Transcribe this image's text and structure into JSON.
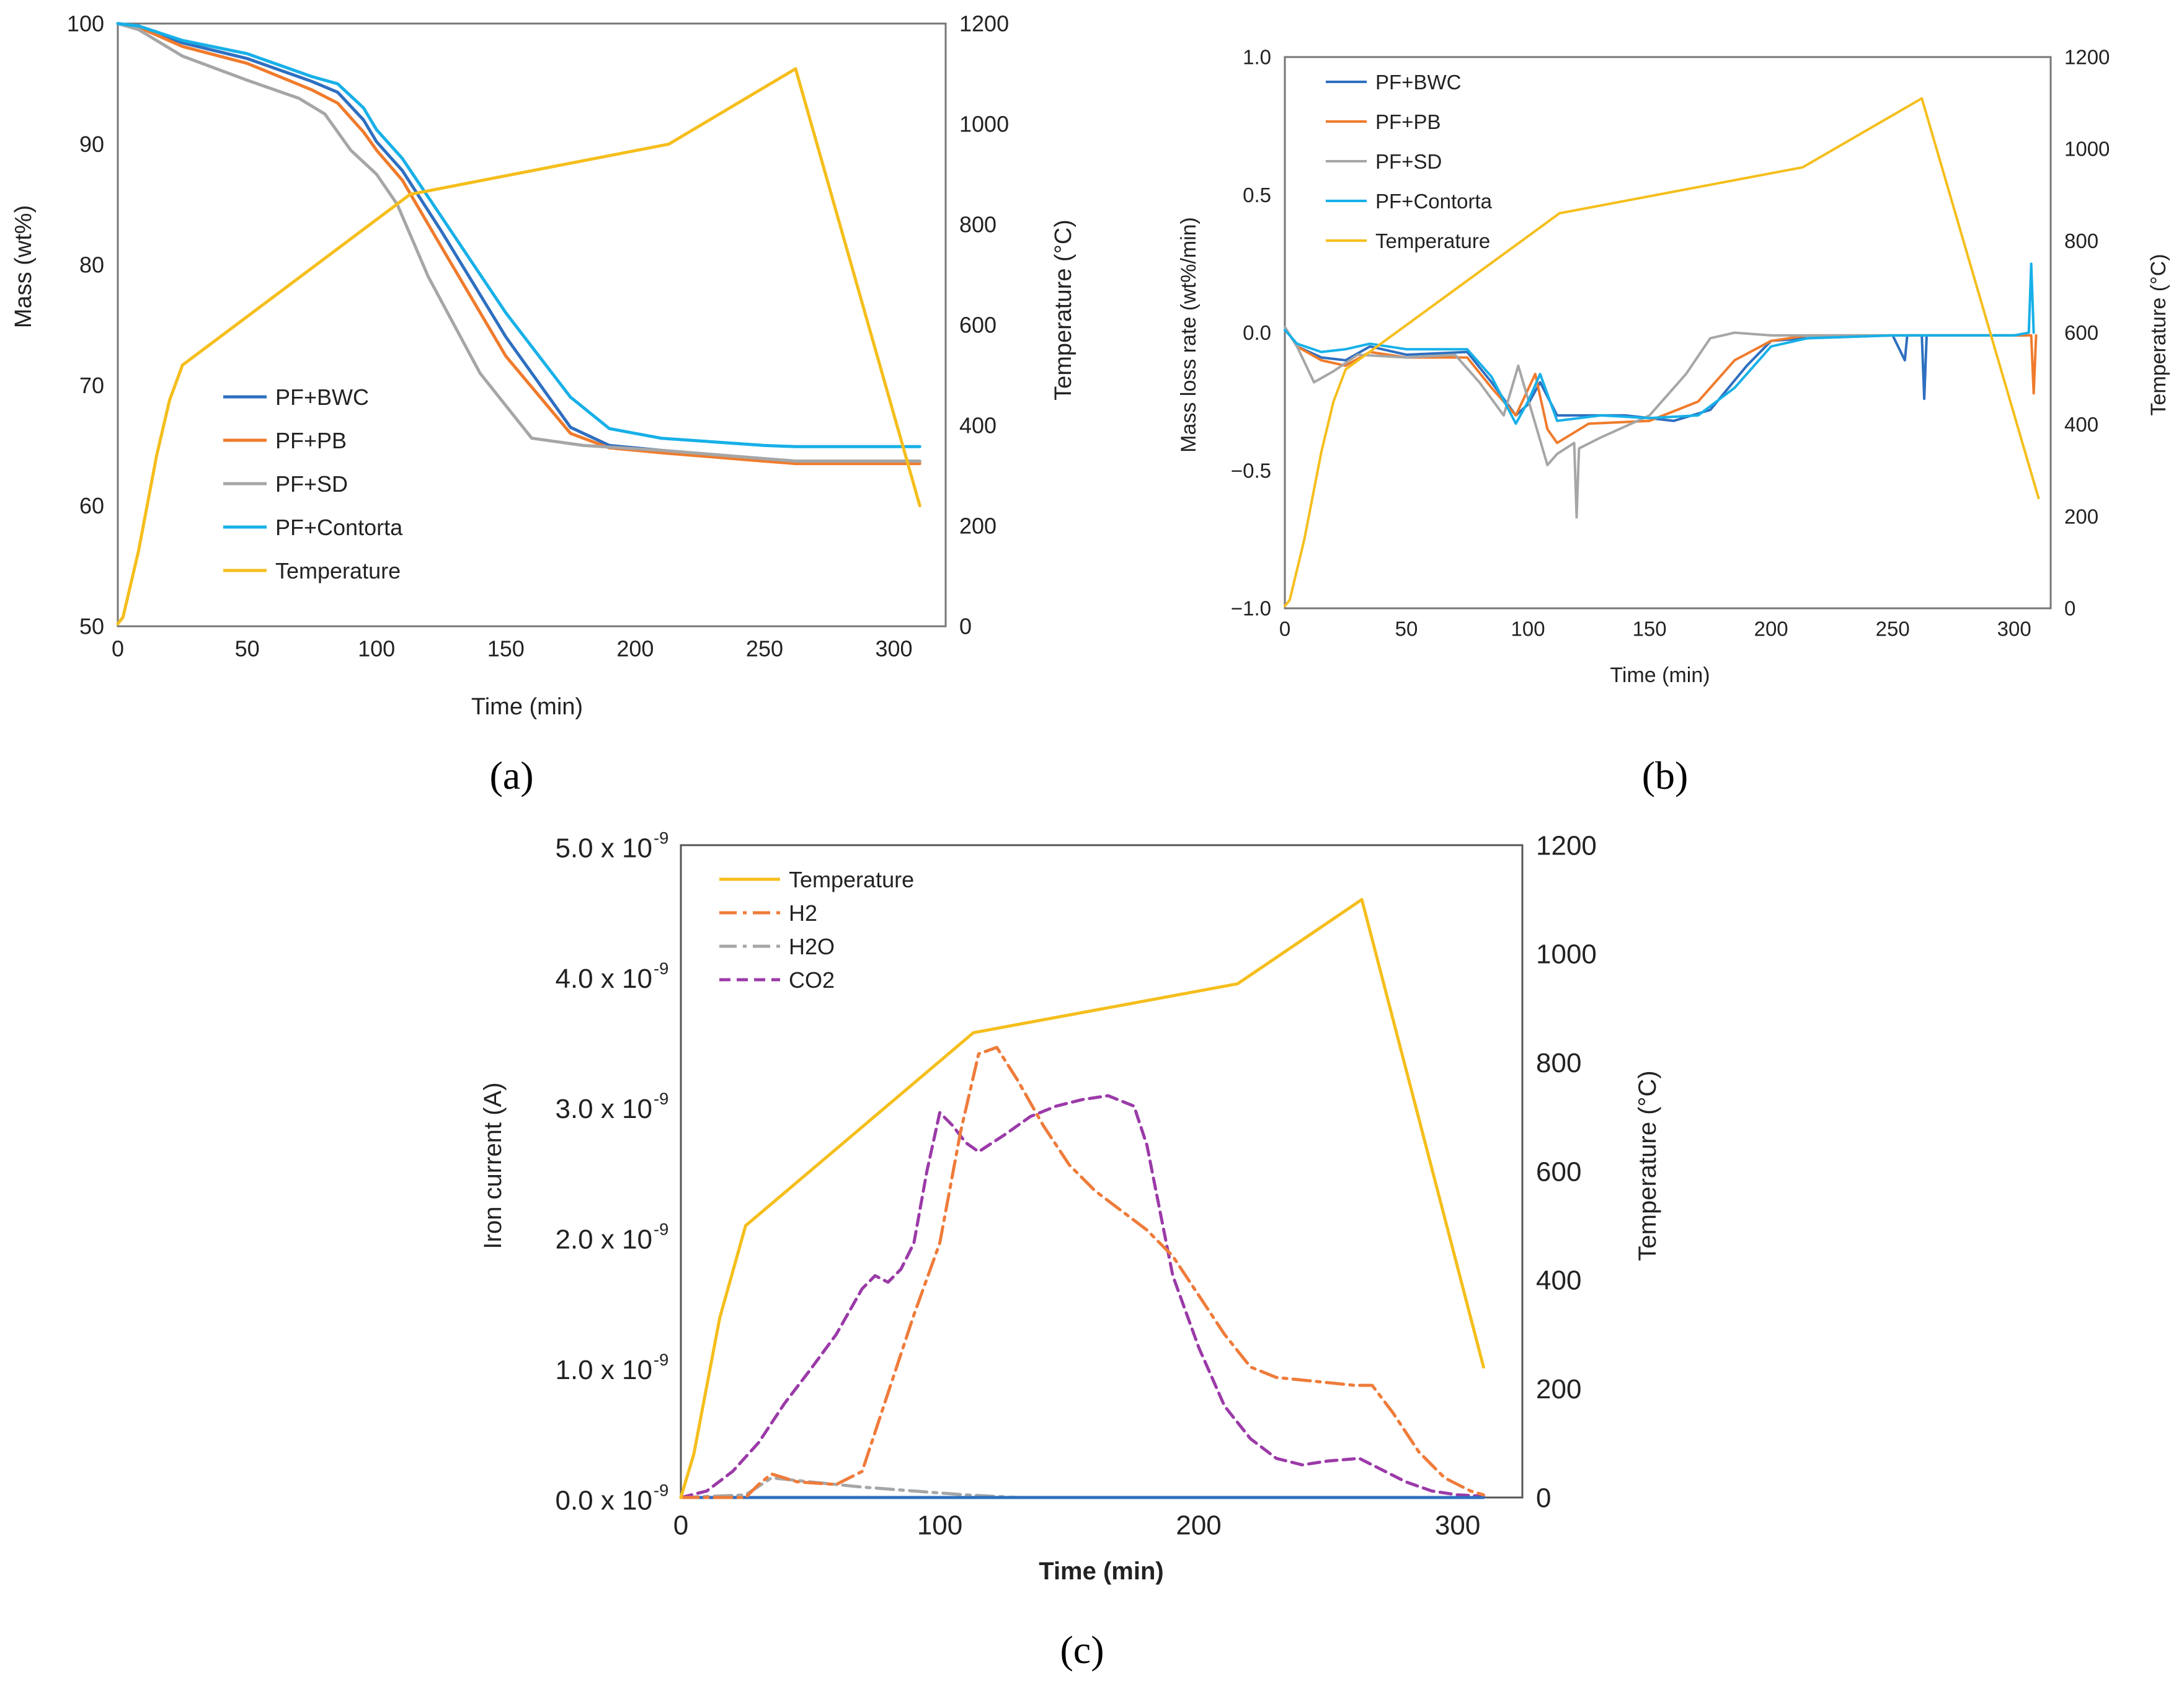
{
  "chart_data": [
    {
      "id": "a",
      "type": "line",
      "panel_label": "(a)",
      "xlabel": "Time (min)",
      "ylabel": "Mass  (wt%)",
      "y2label": "Temperature (°C)",
      "xlim": [
        0,
        320
      ],
      "ylim": [
        50,
        100
      ],
      "y2lim": [
        0,
        1200
      ],
      "xticks": [
        0,
        50,
        100,
        150,
        200,
        250,
        300
      ],
      "yticks": [
        50,
        60,
        70,
        80,
        90,
        100
      ],
      "y2ticks": [
        0,
        200,
        400,
        600,
        800,
        1000,
        1200
      ],
      "legend_position": "lower-left",
      "legend": [
        "PF+BWC",
        "PF+PB",
        "PF+SD",
        "PF+Contorta",
        "Temperature"
      ],
      "series": [
        {
          "name": "PF+BWC",
          "color": "#2e6fc0",
          "axis": "left",
          "x": [
            0,
            8,
            25,
            50,
            75,
            85,
            95,
            100,
            110,
            125,
            150,
            175,
            190,
            210,
            250,
            262,
            310
          ],
          "y": [
            100,
            99.8,
            98.4,
            97.1,
            95.2,
            94.3,
            92.0,
            90.2,
            87.8,
            82.8,
            74.0,
            66.5,
            65.0,
            64.6,
            63.9,
            63.7,
            63.7
          ]
        },
        {
          "name": "PF+PB",
          "color": "#f07b2c",
          "axis": "left",
          "x": [
            0,
            8,
            25,
            50,
            75,
            85,
            95,
            100,
            110,
            125,
            150,
            175,
            190,
            210,
            250,
            262,
            310
          ],
          "y": [
            100,
            99.7,
            98.1,
            96.7,
            94.5,
            93.4,
            91.0,
            89.5,
            87.0,
            81.5,
            72.4,
            66.0,
            64.8,
            64.4,
            63.7,
            63.5,
            63.5
          ]
        },
        {
          "name": "PF+SD",
          "color": "#a6a6a6",
          "axis": "left",
          "x": [
            0,
            8,
            25,
            50,
            70,
            80,
            90,
            100,
            108,
            120,
            140,
            160,
            180,
            210,
            250,
            262,
            310
          ],
          "y": [
            100,
            99.5,
            97.3,
            95.3,
            93.8,
            92.5,
            89.5,
            87.5,
            85.0,
            79.0,
            71.0,
            65.6,
            65.0,
            64.6,
            63.9,
            63.7,
            63.7
          ]
        },
        {
          "name": "PF+Contorta",
          "color": "#17b0e8",
          "axis": "left",
          "x": [
            0,
            8,
            25,
            50,
            75,
            85,
            95,
            100,
            110,
            125,
            150,
            175,
            190,
            210,
            250,
            262,
            310
          ],
          "y": [
            100,
            99.8,
            98.6,
            97.5,
            95.6,
            95.0,
            93.0,
            91.2,
            88.8,
            84.0,
            76.0,
            69.0,
            66.4,
            65.6,
            65.0,
            64.9,
            64.9
          ]
        },
        {
          "name": "Temperature",
          "color": "#f5be1c",
          "axis": "right",
          "x": [
            0,
            2,
            8,
            15,
            20,
            25,
            113,
            213,
            262,
            310
          ],
          "y": [
            5,
            18,
            150,
            340,
            450,
            520,
            860,
            960,
            1110,
            240
          ]
        }
      ]
    },
    {
      "id": "b",
      "type": "line",
      "panel_label": "(b)",
      "xlabel": "Time (min)",
      "ylabel": "Mass loss rate  (wt%/min)",
      "y2label": "Temperature (°C)",
      "xlim": [
        0,
        315
      ],
      "ylim": [
        -1.0,
        1.0
      ],
      "y2lim": [
        0,
        1200
      ],
      "xticks": [
        0,
        50,
        100,
        150,
        200,
        250,
        300
      ],
      "yticks": [
        -1.0,
        -0.5,
        0.0,
        0.5,
        1.0
      ],
      "ytick_labels": [
        "−1.0",
        "−0.5",
        "0.0",
        "0.5",
        "1.0"
      ],
      "y2ticks": [
        0,
        200,
        400,
        600,
        800,
        1000,
        1200
      ],
      "legend_position": "top-left",
      "legend": [
        "PF+BWC",
        "PF+PB",
        "PF+SD",
        "PF+Contorta",
        "Temperature"
      ],
      "series": [
        {
          "name": "PF+BWC",
          "color": "#2e6fc0",
          "axis": "left",
          "x": [
            0,
            5,
            15,
            25,
            35,
            50,
            75,
            85,
            95,
            100,
            105,
            112,
            120,
            140,
            160,
            175,
            190,
            200,
            215,
            250,
            255,
            256,
            257,
            262,
            263,
            264,
            300,
            305
          ],
          "y": [
            0.02,
            -0.05,
            -0.09,
            -0.1,
            -0.05,
            -0.08,
            -0.07,
            -0.18,
            -0.3,
            -0.26,
            -0.18,
            -0.3,
            -0.3,
            -0.3,
            -0.32,
            -0.28,
            -0.12,
            -0.03,
            -0.02,
            -0.01,
            -0.1,
            -0.01,
            -0.01,
            -0.01,
            -0.24,
            -0.01,
            -0.01,
            -0.01
          ]
        },
        {
          "name": "PF+PB",
          "color": "#f07b2c",
          "axis": "left",
          "x": [
            0,
            5,
            15,
            25,
            35,
            50,
            75,
            85,
            95,
            103,
            108,
            112,
            125,
            150,
            170,
            185,
            200,
            215,
            250,
            300,
            307,
            308,
            309
          ],
          "y": [
            0.02,
            -0.05,
            -0.1,
            -0.12,
            -0.07,
            -0.09,
            -0.09,
            -0.2,
            -0.3,
            -0.15,
            -0.35,
            -0.4,
            -0.33,
            -0.32,
            -0.25,
            -0.1,
            -0.03,
            -0.01,
            -0.01,
            -0.01,
            -0.01,
            -0.22,
            -0.01
          ]
        },
        {
          "name": "PF+SD",
          "color": "#a6a6a6",
          "axis": "left",
          "x": [
            0,
            5,
            12,
            20,
            30,
            50,
            70,
            80,
            90,
            96,
            102,
            108,
            112,
            119,
            120,
            121,
            130,
            150,
            165,
            175,
            185,
            200,
            250,
            300
          ],
          "y": [
            0.02,
            -0.05,
            -0.18,
            -0.14,
            -0.08,
            -0.09,
            -0.08,
            -0.18,
            -0.3,
            -0.12,
            -0.3,
            -0.48,
            -0.44,
            -0.4,
            -0.67,
            -0.42,
            -0.38,
            -0.3,
            -0.15,
            -0.02,
            0.0,
            -0.01,
            -0.01,
            -0.01
          ]
        },
        {
          "name": "PF+Contorta",
          "color": "#17b0e8",
          "axis": "left",
          "x": [
            0,
            5,
            15,
            25,
            35,
            50,
            75,
            85,
            95,
            100,
            105,
            112,
            130,
            150,
            170,
            185,
            200,
            215,
            250,
            300,
            306,
            307,
            308
          ],
          "y": [
            0.01,
            -0.04,
            -0.07,
            -0.06,
            -0.04,
            -0.06,
            -0.06,
            -0.16,
            -0.33,
            -0.25,
            -0.15,
            -0.32,
            -0.3,
            -0.31,
            -0.3,
            -0.2,
            -0.05,
            -0.02,
            -0.01,
            -0.01,
            0.0,
            0.25,
            0.0
          ]
        },
        {
          "name": "Temperature",
          "color": "#f5be1c",
          "axis": "right",
          "x": [
            0,
            2,
            8,
            15,
            20,
            25,
            113,
            213,
            262,
            310
          ],
          "y": [
            5,
            18,
            150,
            340,
            450,
            520,
            860,
            960,
            1110,
            240
          ]
        }
      ]
    },
    {
      "id": "c",
      "type": "line",
      "panel_label": "(c)",
      "xlabel": "Time (min)",
      "ylabel": "Iron current (A)",
      "y2label": "Temperature (°C)",
      "xlim": [
        0,
        325
      ],
      "ylim": [
        0.0,
        5.0
      ],
      "y2lim": [
        0,
        1200
      ],
      "xticks": [
        0,
        100,
        200,
        300
      ],
      "yticks": [
        0.0,
        1.0,
        2.0,
        3.0,
        4.0,
        5.0
      ],
      "ytick_mantissas": [
        "0.0 x 10",
        "1.0 x 10",
        "2.0 x 10",
        "3.0 x 10",
        "4.0 x 10",
        "5.0 x 10"
      ],
      "ytick_exponent": "-9",
      "y2ticks": [
        0,
        200,
        400,
        600,
        800,
        1000,
        1200
      ],
      "legend_position": "top-left",
      "legend": [
        "Temperature",
        "H2",
        "H2O",
        "CO2"
      ],
      "series": [
        {
          "name": "Temperature",
          "color": "#f5be1c",
          "axis": "right",
          "style": "solid",
          "x": [
            0,
            5,
            15,
            25,
            113,
            215,
            263,
            310
          ],
          "y": [
            0,
            80,
            330,
            500,
            855,
            945,
            1100,
            240
          ]
        },
        {
          "name": "H2",
          "color": "#ef7b3a",
          "axis": "right",
          "style": "dashdot",
          "note": "plotted in units of the left axis",
          "x": [
            0,
            25,
            30,
            35,
            45,
            60,
            70,
            80,
            90,
            100,
            108,
            115,
            122,
            130,
            140,
            150,
            160,
            170,
            180,
            190,
            200,
            210,
            220,
            230,
            240,
            250,
            260,
            267,
            275,
            285,
            295,
            305,
            310
          ],
          "y": [
            0.0,
            0.0,
            0.1,
            0.18,
            0.12,
            0.1,
            0.2,
            0.8,
            1.4,
            1.95,
            2.8,
            3.4,
            3.45,
            3.2,
            2.85,
            2.55,
            2.35,
            2.2,
            2.05,
            1.85,
            1.55,
            1.25,
            1.0,
            0.92,
            0.9,
            0.88,
            0.86,
            0.86,
            0.65,
            0.35,
            0.15,
            0.05,
            0.02
          ]
        }
      ],
      "series_left_axis": [
        {
          "name": "H2O",
          "color": "#a6a6a6",
          "style": "dashdot",
          "x": [
            0,
            25,
            35,
            50,
            70,
            90,
            110,
            130,
            200,
            310
          ],
          "y": [
            0.0,
            0.02,
            0.15,
            0.12,
            0.08,
            0.05,
            0.02,
            0.0,
            0.0,
            0.0
          ]
        },
        {
          "name": "CO2",
          "color": "#9b3aa8",
          "style": "dashed",
          "x": [
            0,
            10,
            20,
            30,
            40,
            50,
            60,
            70,
            75,
            80,
            85,
            90,
            95,
            100,
            105,
            110,
            115,
            125,
            135,
            145,
            155,
            165,
            175,
            180,
            185,
            190,
            200,
            210,
            220,
            230,
            240,
            250,
            262,
            270,
            280,
            290,
            300,
            310
          ],
          "y": [
            0.0,
            0.05,
            0.2,
            0.42,
            0.72,
            0.98,
            1.25,
            1.6,
            1.7,
            1.65,
            1.75,
            1.95,
            2.5,
            2.95,
            2.85,
            2.72,
            2.65,
            2.78,
            2.92,
            3.0,
            3.05,
            3.08,
            3.0,
            2.7,
            2.2,
            1.7,
            1.15,
            0.7,
            0.45,
            0.3,
            0.25,
            0.28,
            0.3,
            0.22,
            0.12,
            0.05,
            0.02,
            0.01
          ]
        },
        {
          "name": "baseline",
          "color": "#2e6fc0",
          "style": "solid",
          "x": [
            0,
            310
          ],
          "y": [
            0.0,
            0.0
          ]
        }
      ]
    }
  ]
}
